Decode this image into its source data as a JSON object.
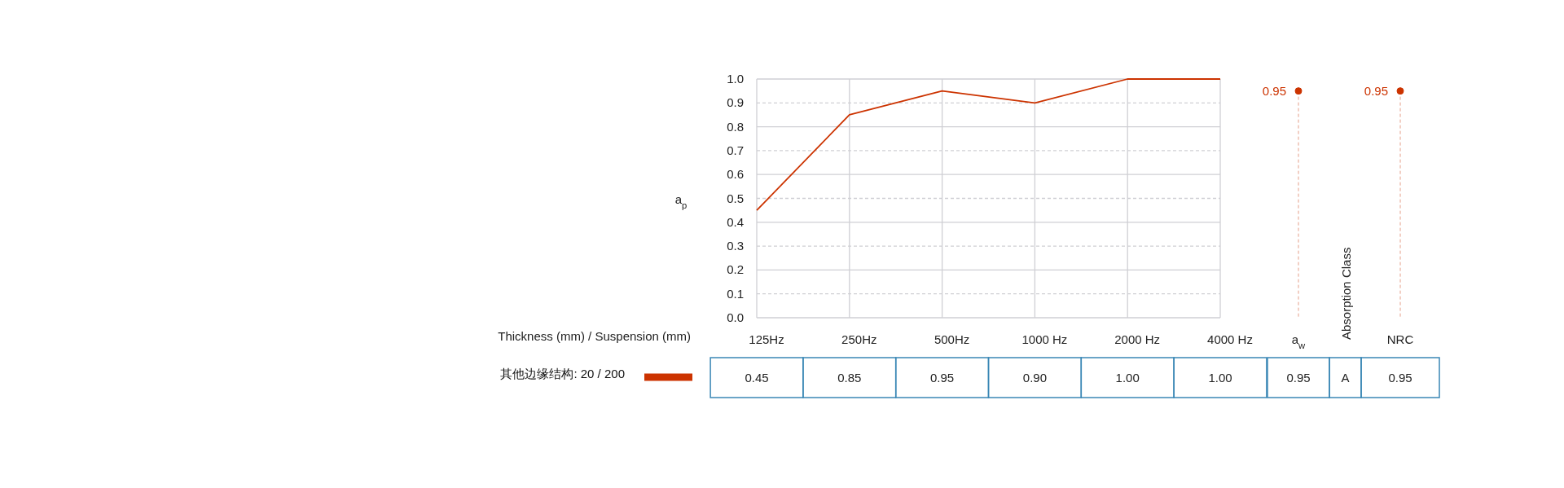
{
  "chart_data": [
    {
      "type": "line",
      "ylabel": "a$_{p}$",
      "legend_title": "Thickness (mm) / Suspension (mm)",
      "categories": [
        "125Hz",
        "250Hz",
        "500Hz",
        "1000 Hz",
        "2000 Hz",
        "4000 Hz"
      ],
      "series": [
        {
          "name": "其他边缘结构: 20 / 200",
          "color": "#cc3300",
          "values": [
            0.45,
            0.85,
            0.95,
            0.9,
            1.0,
            1.0
          ],
          "value_labels": [
            "0.45",
            "0.85",
            "0.95",
            "0.90",
            "1.00",
            "1.00"
          ]
        }
      ],
      "ylim": [
        0,
        1
      ],
      "yticks": [
        {
          "value": 0,
          "label": "0.0"
        },
        {
          "value": 0.1,
          "label": "0.1"
        },
        {
          "value": 0.2,
          "label": "0.2"
        },
        {
          "value": 0.3,
          "label": "0.3"
        },
        {
          "value": 0.4,
          "label": "0.4"
        },
        {
          "value": 0.5,
          "label": "0.5"
        },
        {
          "value": 0.6,
          "label": "0.6"
        },
        {
          "value": 0.7,
          "label": "0.7"
        },
        {
          "value": 0.8,
          "label": "0.8"
        },
        {
          "value": 0.9,
          "label": "0.9"
        },
        {
          "value": 1,
          "label": "1.0"
        }
      ],
      "grid": true,
      "legend": "bottom left",
      "marker": "none"
    },
    {
      "type": "lollipop",
      "categories": [
        "a$_{w}$"
      ],
      "series": [
        {
          "color": "#cc3300",
          "values": [
            0.95
          ],
          "value_labels": [
            "0.95"
          ]
        }
      ],
      "ylim": [
        0,
        1
      ],
      "tick_labels": "x",
      "line_style": "dashed",
      "marker": "circle"
    },
    {
      "type": "other",
      "xlabel": "Absorption Class",
      "annotations": [
        "A"
      ]
    },
    {
      "type": "lollipop",
      "categories": [
        "NRC"
      ],
      "series": [
        {
          "color": "#cc3300",
          "values": [
            0.95
          ],
          "value_labels": [
            "0.95"
          ]
        }
      ],
      "ylim": [
        0,
        1
      ],
      "tick_labels": "x",
      "line_style": "dashed",
      "marker": "circle"
    }
  ]
}
